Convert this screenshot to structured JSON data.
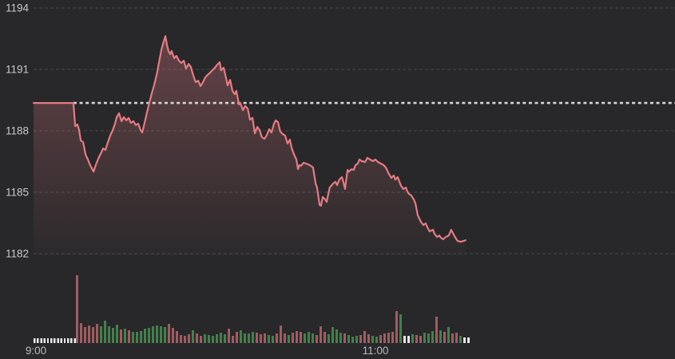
{
  "colors": {
    "background": "#28282a",
    "grid": "#47484b",
    "axis_label_y": "#c6c8ca",
    "axis_label_x": "#b8babd",
    "reference_line": "#d4d5d6",
    "price_line": "#e57b83",
    "area_top": "rgba(229,123,131,0.32)",
    "area_bottom": "rgba(229,123,131,0.02)",
    "volume_up": "#44804a",
    "volume_down": "#a15c60",
    "volume_flat": "#e8e8e8"
  },
  "chart_data": {
    "type": "area",
    "title": "",
    "xlabel": "",
    "ylabel": "",
    "grid": "dashed-horizontal",
    "legend": "none",
    "y_axis": {
      "ticks": [
        1194,
        1191,
        1188,
        1185,
        1182
      ],
      "range": [
        1182,
        1194
      ]
    },
    "x_axis": {
      "ticks": [
        {
          "label": "9:00",
          "min": 0
        },
        {
          "label": "11:00",
          "min": 120
        }
      ],
      "minutes_visible": 227
    },
    "reference_line": {
      "value": 1189.36,
      "style": "dotted",
      "start_min": 14.1
    },
    "price_series": {
      "name": "index-price",
      "last_value": 1182.66,
      "points": [
        [
          0,
          1189.36
        ],
        [
          14.1,
          1189.36
        ],
        [
          14.7,
          1188.23
        ],
        [
          15.5,
          1188.31
        ],
        [
          16.1,
          1188.04
        ],
        [
          16.7,
          1187.53
        ],
        [
          17.5,
          1187.45
        ],
        [
          18.4,
          1186.83
        ],
        [
          19.2,
          1186.6
        ],
        [
          20,
          1186.33
        ],
        [
          21.2,
          1186.01
        ],
        [
          22,
          1186.33
        ],
        [
          22.9,
          1186.64
        ],
        [
          23.7,
          1186.87
        ],
        [
          24.6,
          1187.14
        ],
        [
          25.4,
          1187.07
        ],
        [
          26.3,
          1187.45
        ],
        [
          27.1,
          1187.77
        ],
        [
          28,
          1188.04
        ],
        [
          28.8,
          1188.35
        ],
        [
          29.4,
          1188.67
        ],
        [
          30.2,
          1188.86
        ],
        [
          31.1,
          1188.47
        ],
        [
          31.9,
          1188.67
        ],
        [
          32.8,
          1188.51
        ],
        [
          33.6,
          1188.63
        ],
        [
          34.4,
          1188.39
        ],
        [
          35.3,
          1188.47
        ],
        [
          36.1,
          1188.28
        ],
        [
          37,
          1188.35
        ],
        [
          37.8,
          1188.04
        ],
        [
          38.4,
          1187.92
        ],
        [
          39.2,
          1188.35
        ],
        [
          40.1,
          1188.9
        ],
        [
          40.9,
          1189.36
        ],
        [
          41.8,
          1189.83
        ],
        [
          42.6,
          1190.22
        ],
        [
          43.5,
          1190.73
        ],
        [
          44.3,
          1191.31
        ],
        [
          45.2,
          1191.97
        ],
        [
          46,
          1192.36
        ],
        [
          46.6,
          1192.63
        ],
        [
          47.2,
          1192.17
        ],
        [
          47.7,
          1191.9
        ],
        [
          48.3,
          1191.74
        ],
        [
          48.8,
          1191.9
        ],
        [
          49.7,
          1191.55
        ],
        [
          50.5,
          1191.66
        ],
        [
          51.4,
          1191.43
        ],
        [
          52.2,
          1191.31
        ],
        [
          53.1,
          1191.43
        ],
        [
          53.9,
          1191.04
        ],
        [
          54.8,
          1191.27
        ],
        [
          55.6,
          1191.12
        ],
        [
          56.5,
          1190.69
        ],
        [
          57.3,
          1190.38
        ],
        [
          58.2,
          1190.45
        ],
        [
          59,
          1190.18
        ],
        [
          59.9,
          1190.38
        ],
        [
          60.7,
          1190.61
        ],
        [
          61.5,
          1190.73
        ],
        [
          62.4,
          1190.84
        ],
        [
          63.2,
          1190.96
        ],
        [
          64.1,
          1191.08
        ],
        [
          64.9,
          1191.23
        ],
        [
          65.8,
          1191.35
        ],
        [
          66.3,
          1190.96
        ],
        [
          67.2,
          1191.08
        ],
        [
          68,
          1190.61
        ],
        [
          68.6,
          1190.22
        ],
        [
          69.5,
          1190.49
        ],
        [
          70.3,
          1189.95
        ],
        [
          71.1,
          1189.79
        ],
        [
          71.7,
          1189.95
        ],
        [
          72.6,
          1189.29
        ],
        [
          73.1,
          1189.36
        ],
        [
          74,
          1189.01
        ],
        [
          74.8,
          1189.21
        ],
        [
          75.7,
          1189.09
        ],
        [
          76.5,
          1188.55
        ],
        [
          77.4,
          1188.63
        ],
        [
          78.2,
          1187.88
        ],
        [
          79.1,
          1188.19
        ],
        [
          79.9,
          1188.04
        ],
        [
          80.7,
          1187.69
        ],
        [
          81.6,
          1187.61
        ],
        [
          82.4,
          1187.77
        ],
        [
          83.3,
          1188.08
        ],
        [
          84.1,
          1187.92
        ],
        [
          85,
          1188.35
        ],
        [
          85.6,
          1188.51
        ],
        [
          86.4,
          1188.43
        ],
        [
          87.2,
          1187.96
        ],
        [
          88.1,
          1187.84
        ],
        [
          88.9,
          1187.77
        ],
        [
          89.8,
          1187.38
        ],
        [
          90.6,
          1187.57
        ],
        [
          91.2,
          1187.18
        ],
        [
          92,
          1186.87
        ],
        [
          92.9,
          1186.6
        ],
        [
          93.5,
          1186.13
        ],
        [
          94,
          1186.33
        ],
        [
          94.6,
          1186.29
        ],
        [
          95.4,
          1186.44
        ],
        [
          96.3,
          1186.4
        ],
        [
          97.1,
          1186.36
        ],
        [
          98,
          1186.29
        ],
        [
          98.8,
          1186.21
        ],
        [
          99.7,
          1185.43
        ],
        [
          100.2,
          1185.23
        ],
        [
          101.1,
          1184.38
        ],
        [
          101.6,
          1184.34
        ],
        [
          102.2,
          1184.77
        ],
        [
          103.1,
          1184.65
        ],
        [
          103.6,
          1184.53
        ],
        [
          104.2,
          1184.92
        ],
        [
          104.7,
          1185.23
        ],
        [
          105.9,
          1185.43
        ],
        [
          106.7,
          1185.51
        ],
        [
          107.3,
          1185.35
        ],
        [
          108.1,
          1185.62
        ],
        [
          109,
          1185.74
        ],
        [
          109.5,
          1185.51
        ],
        [
          110.1,
          1185.16
        ],
        [
          111,
          1186.09
        ],
        [
          111.5,
          1186.01
        ],
        [
          112.4,
          1186.13
        ],
        [
          113.2,
          1186.09
        ],
        [
          113.8,
          1186.33
        ],
        [
          114.6,
          1186.4
        ],
        [
          115.2,
          1186.6
        ],
        [
          116,
          1186.52
        ],
        [
          117.2,
          1186.48
        ],
        [
          118,
          1186.68
        ],
        [
          118.9,
          1186.6
        ],
        [
          120,
          1186.52
        ],
        [
          120.8,
          1186.6
        ],
        [
          121.7,
          1186.48
        ],
        [
          122.8,
          1186.4
        ],
        [
          123.7,
          1186.33
        ],
        [
          124.5,
          1186.21
        ],
        [
          125.6,
          1185.9
        ],
        [
          126.5,
          1185.7
        ],
        [
          127.3,
          1185.82
        ],
        [
          127.9,
          1185.62
        ],
        [
          128.7,
          1185.74
        ],
        [
          129.9,
          1185.31
        ],
        [
          130.7,
          1185.16
        ],
        [
          131.6,
          1185.23
        ],
        [
          132.1,
          1185.04
        ],
        [
          132.7,
          1184.92
        ],
        [
          133.5,
          1184.85
        ],
        [
          134.4,
          1184.65
        ],
        [
          135,
          1184.45
        ],
        [
          135.8,
          1183.87
        ],
        [
          136.9,
          1183.56
        ],
        [
          137.8,
          1183.4
        ],
        [
          138.6,
          1183.48
        ],
        [
          139.2,
          1183.29
        ],
        [
          140,
          1183.09
        ],
        [
          141.2,
          1183.17
        ],
        [
          141.7,
          1182.97
        ],
        [
          142.6,
          1182.82
        ],
        [
          143.4,
          1182.89
        ],
        [
          144,
          1182.78
        ],
        [
          144.8,
          1182.7
        ],
        [
          145.7,
          1182.82
        ],
        [
          146.8,
          1182.89
        ],
        [
          147.6,
          1183.17
        ],
        [
          148.2,
          1183.01
        ],
        [
          149.1,
          1182.78
        ],
        [
          149.9,
          1182.62
        ],
        [
          151,
          1182.58
        ],
        [
          151.9,
          1182.62
        ],
        [
          152.7,
          1182.66
        ]
      ]
    },
    "volume_series": {
      "start_min": 15,
      "step_min": 1.412,
      "bars": [
        [
          85,
          "r"
        ],
        [
          25,
          "r"
        ],
        [
          20,
          "r"
        ],
        [
          22,
          "r"
        ],
        [
          20,
          "r"
        ],
        [
          24,
          "r"
        ],
        [
          21,
          "g"
        ],
        [
          28,
          "g"
        ],
        [
          21,
          "g"
        ],
        [
          19,
          "g"
        ],
        [
          23,
          "g"
        ],
        [
          17,
          "r"
        ],
        [
          18,
          "g"
        ],
        [
          16,
          "r"
        ],
        [
          14,
          "g"
        ],
        [
          14,
          "g"
        ],
        [
          15,
          "g"
        ],
        [
          18,
          "g"
        ],
        [
          19,
          "g"
        ],
        [
          21,
          "g"
        ],
        [
          22,
          "g"
        ],
        [
          21,
          "g"
        ],
        [
          20,
          "g"
        ],
        [
          24,
          "r"
        ],
        [
          19,
          "r"
        ],
        [
          15,
          "r"
        ],
        [
          10,
          "r"
        ],
        [
          9,
          "r"
        ],
        [
          11,
          "r"
        ],
        [
          16,
          "g"
        ],
        [
          12,
          "r"
        ],
        [
          9,
          "r"
        ],
        [
          11,
          "g"
        ],
        [
          10,
          "g"
        ],
        [
          9,
          "g"
        ],
        [
          11,
          "g"
        ],
        [
          13,
          "g"
        ],
        [
          11,
          "g"
        ],
        [
          18,
          "r"
        ],
        [
          9,
          "r"
        ],
        [
          14,
          "r"
        ],
        [
          16,
          "g"
        ],
        [
          12,
          "g"
        ],
        [
          12,
          "g"
        ],
        [
          14,
          "g"
        ],
        [
          13,
          "r"
        ],
        [
          11,
          "r"
        ],
        [
          12,
          "r"
        ],
        [
          10,
          "g"
        ],
        [
          9,
          "g"
        ],
        [
          12,
          "r"
        ],
        [
          22,
          "r"
        ],
        [
          12,
          "r"
        ],
        [
          10,
          "g"
        ],
        [
          13,
          "r"
        ],
        [
          15,
          "r"
        ],
        [
          14,
          "r"
        ],
        [
          12,
          "g"
        ],
        [
          14,
          "g"
        ],
        [
          12,
          "g"
        ],
        [
          10,
          "r"
        ],
        [
          21,
          "r"
        ],
        [
          14,
          "r"
        ],
        [
          11,
          "g"
        ],
        [
          20,
          "g"
        ],
        [
          17,
          "g"
        ],
        [
          13,
          "g"
        ],
        [
          12,
          "r"
        ],
        [
          10,
          "g"
        ],
        [
          8,
          "g"
        ],
        [
          9,
          "g"
        ],
        [
          10,
          "r"
        ],
        [
          15,
          "r"
        ],
        [
          11,
          "r"
        ],
        [
          9,
          "g"
        ],
        [
          8,
          "g"
        ],
        [
          10,
          "r"
        ],
        [
          12,
          "r"
        ],
        [
          13,
          "r"
        ],
        [
          14,
          "r"
        ],
        [
          40,
          "r"
        ],
        [
          36,
          "g"
        ],
        [
          9,
          "w"
        ],
        [
          9,
          "w"
        ],
        [
          11,
          "g"
        ],
        [
          10,
          "r"
        ],
        [
          9,
          "r"
        ],
        [
          13,
          "g"
        ],
        [
          12,
          "g"
        ],
        [
          15,
          "g"
        ],
        [
          33,
          "r"
        ],
        [
          16,
          "g"
        ],
        [
          14,
          "r"
        ],
        [
          20,
          "g"
        ],
        [
          12,
          "r"
        ],
        [
          13,
          "r"
        ],
        [
          9,
          "g"
        ],
        [
          7,
          "w"
        ],
        [
          7,
          "w"
        ]
      ]
    },
    "preopen_volume": {
      "start_min": 0,
      "step_min": 1.186,
      "count": 13,
      "height": 6,
      "color": "w"
    }
  }
}
